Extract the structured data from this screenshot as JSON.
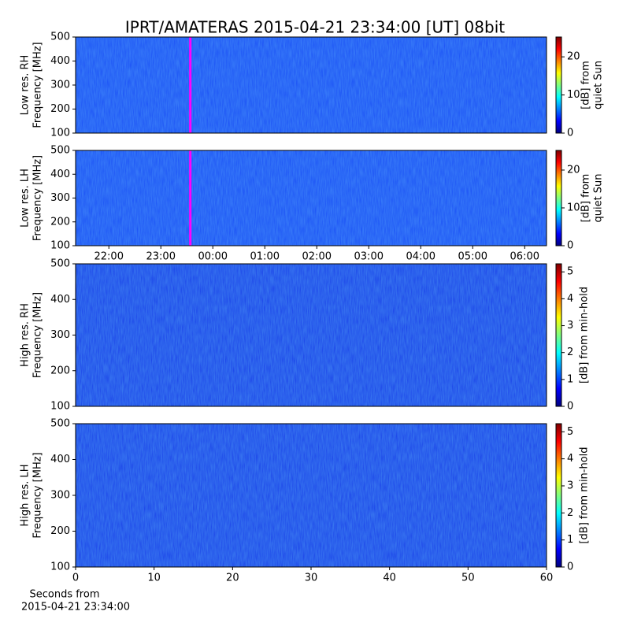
{
  "chart_data": [
    {
      "type": "heatmap",
      "title": "IPRT/AMATERAS 2015-04-21 23:34:00 [UT]   08bit",
      "ylabel": [
        "Low res. RH",
        "Frequency [MHz]"
      ],
      "ylim": [
        100,
        500
      ],
      "yticks": [
        100,
        200,
        300,
        400,
        500
      ],
      "xlim": [
        21.36,
        30.42
      ],
      "cursor_x": 23.567,
      "cursor_color": "#ff00ff",
      "color": "#1c4cf5",
      "colorbar": {
        "label": [
          "[dB] from",
          "quiet Sun"
        ],
        "lim": [
          0,
          25.2
        ],
        "ticks": [
          0,
          10,
          20
        ]
      }
    },
    {
      "type": "heatmap",
      "ylabel": [
        "Low res. LH",
        "Frequency [MHz]"
      ],
      "ylim": [
        100,
        500
      ],
      "yticks": [
        100,
        200,
        300,
        400,
        500
      ],
      "xlim": [
        21.36,
        30.42
      ],
      "xticks": [
        {
          "value": 22,
          "label": "22:00"
        },
        {
          "value": 23,
          "label": "23:00"
        },
        {
          "value": 24,
          "label": "00:00"
        },
        {
          "value": 25,
          "label": "01:00"
        },
        {
          "value": 26,
          "label": "02:00"
        },
        {
          "value": 27,
          "label": "03:00"
        },
        {
          "value": 28,
          "label": "04:00"
        },
        {
          "value": 29,
          "label": "05:00"
        },
        {
          "value": 30,
          "label": "06:00"
        }
      ],
      "cursor_x": 23.567,
      "cursor_color": "#ff00ff",
      "color": "#1c4cf5",
      "colorbar": {
        "label": [
          "[dB] from",
          "quiet Sun"
        ],
        "lim": [
          0,
          25.2
        ],
        "ticks": [
          0,
          10,
          20
        ]
      }
    },
    {
      "type": "heatmap",
      "ylabel": [
        "High res. RH",
        "Frequency [MHz]"
      ],
      "ylim": [
        100,
        500
      ],
      "yticks": [
        100,
        200,
        300,
        400,
        500
      ],
      "xlim": [
        0,
        60
      ],
      "color": "#1a3ae8",
      "colorbar": {
        "label": [
          "[dB] from min-hold"
        ],
        "lim": [
          0,
          5.3
        ],
        "ticks": [
          0,
          1,
          2,
          3,
          4,
          5
        ]
      }
    },
    {
      "type": "heatmap",
      "ylabel": [
        "High res. LH",
        "Frequency [MHz]"
      ],
      "ylim": [
        100,
        500
      ],
      "yticks": [
        100,
        200,
        300,
        400,
        500
      ],
      "xlim": [
        0,
        60
      ],
      "xticks": [
        0,
        10,
        20,
        30,
        40,
        50,
        60
      ],
      "xlabel": [
        "Seconds from",
        "2015-04-21 23:34:00"
      ],
      "color": "#1a3ae8",
      "colorbar": {
        "label": [
          "[dB] from min-hold"
        ],
        "lim": [
          0,
          5.3
        ],
        "ticks": [
          0,
          1,
          2,
          3,
          4,
          5
        ]
      }
    }
  ]
}
